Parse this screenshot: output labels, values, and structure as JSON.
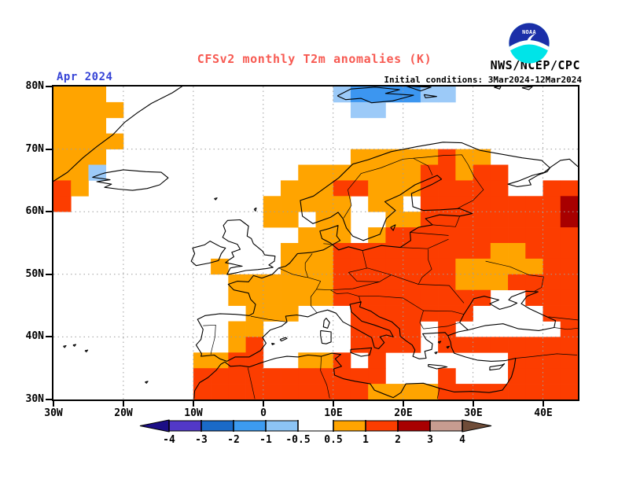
{
  "header": {
    "title": "CFSv2 monthly T2m anomalies (K)",
    "date_label": "Apr 2024",
    "initial_conditions": "Initial conditions: 3Mar2024-12Mar2024",
    "agency": "NWS/NCEP/CPC",
    "logo_text": "NOAA"
  },
  "colors": {
    "title": "#f75a52",
    "date_label": "#3543d6",
    "text": "#000000",
    "grid_line": "#9e9e9e",
    "coast": "#000000",
    "logo_blue": "#1b2fa8",
    "logo_cyan": "#00e4e8"
  },
  "map": {
    "lat_ticks": [
      {
        "label": "80N",
        "value": 80
      },
      {
        "label": "70N",
        "value": 70
      },
      {
        "label": "60N",
        "value": 60
      },
      {
        "label": "50N",
        "value": 50
      },
      {
        "label": "40N",
        "value": 40
      },
      {
        "label": "30N",
        "value": 30
      }
    ],
    "lon_ticks": [
      {
        "label": "30W",
        "value": -30
      },
      {
        "label": "20W",
        "value": -20
      },
      {
        "label": "10W",
        "value": -10
      },
      {
        "label": "0",
        "value": 0
      },
      {
        "label": "10E",
        "value": 10
      },
      {
        "label": "20E",
        "value": 20
      },
      {
        "label": "30E",
        "value": 30
      },
      {
        "label": "40E",
        "value": 40
      }
    ],
    "lon_range": [
      -30,
      45
    ],
    "lat_range": [
      30,
      80
    ],
    "grid_rows": [
      "ooo.............lbbbbll.......",
      "oooo.............ll...........",
      "ooo...........................",
      "oooo..........................",
      "ooo..............oooooroo.....",
      "ool...........ooooooorrorr....",
      "ro...........ooorrooorrrrr..rr",
      "r...........ooooo.oo.rrrrrrrrd",
      "............oo.oo..oorrrrrrrrd",
      "..............ooo.orrrrrrrrrrr",
      ".............ooorrrrrrrrroorrr",
      ".........o...ooorrrrrrrooooorr",
      "..........oooooorrrrrrrooorrrr",
      "..........oooooorrrrrrrrr..rrr",
      "...........ooo...rrrrrrr....rr",
      "..........oo.....rrrr.r......r",
      "..........or.....rrrr.rrrrrrrr",
      "........oorr..oor.r.......rrrr",
      "........rrrrrrrrrrr...r...rrrr",
      "........rrrrrrrrrroooorrrrrrrr"
    ],
    "palette": {
      "o": "#ffa400",
      "r": "#fc3d00",
      "d": "#a80000",
      "b": "#3c96f0",
      "l": "#9ccaf8"
    },
    "palette_meaning": {
      "o": "+0.5 to +1 K",
      "r": "+1 to +2 K",
      "d": "+2 to +3 K",
      "b": "-2 to -1 K",
      "l": "-1 to -0.5 K",
      ".": "-0.5 to +0.5 K (white)"
    }
  },
  "colorbar": {
    "tick_labels": [
      "-4",
      "-3",
      "-2",
      "-1",
      "-0.5",
      "0.5",
      "1",
      "2",
      "3",
      "4"
    ],
    "negative_colors": [
      "#5238c8",
      "#1a6ac8",
      "#3c9bf0",
      "#8cc4f5"
    ],
    "positive_colors": [
      "#ffa400",
      "#fc3d00",
      "#a80000",
      "#c79c90"
    ],
    "below_min_color": "#1c0e86",
    "above_max_color": "#6f4c38"
  }
}
